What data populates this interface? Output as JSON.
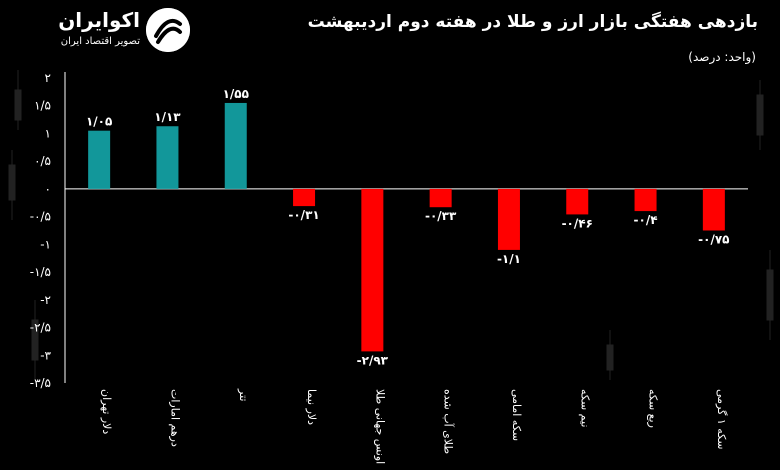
{
  "header": {
    "title": "بازدهی هفتگی بازار ارز و طلا در هفته دوم اردیبهشت",
    "unit": "(واحد: درصد)"
  },
  "logo": {
    "name": "اکوایران",
    "tagline": "تصویر اقتصاد ایران",
    "icon": "ecoiran-logo-icon"
  },
  "colors": {
    "positive": "#12979A",
    "negative": "#FF0000",
    "background": "#000000",
    "text": "#FFFFFF"
  },
  "chart_data": {
    "type": "bar",
    "title": "بازدهی هفتگی بازار ارز و طلا در هفته دوم اردیبهشت",
    "ylabel": "",
    "xlabel": "",
    "unit": "(واحد: درصد)",
    "categories": [
      "دلار تهران",
      "درهم امارات",
      "تتر",
      "دلار نیما",
      "اونس جهانی طلا",
      "طلای آب شده",
      "سکه امامی",
      "نیم سکه",
      "ربع سکه",
      "سکه ۱ گرمی"
    ],
    "values": [
      1.05,
      1.13,
      1.55,
      -0.31,
      -2.93,
      -0.33,
      -1.1,
      -0.46,
      -0.4,
      -0.75
    ],
    "data_labels": [
      "۱/۰۵",
      "۱/۱۳",
      "۱/۵۵",
      "-۰/۳۱",
      "-۲/۹۳",
      "-۰/۳۳",
      "-۱/۱",
      "-۰/۴۶",
      "-۰/۴",
      "-۰/۷۵"
    ],
    "ylim": [
      -3.5,
      2
    ],
    "yticks": [
      2,
      1.5,
      1,
      0.5,
      0,
      -0.5,
      -1,
      -1.5,
      -2,
      -2.5,
      -3,
      -3.5
    ],
    "ytick_labels": [
      "۲",
      "۱/۵",
      "۱",
      "۰/۵",
      "۰",
      "-۰/۵",
      "-۱",
      "-۱/۵",
      "-۲",
      "-۲/۵",
      "-۳",
      "-۳/۵"
    ],
    "grid": false,
    "legend": "none"
  }
}
